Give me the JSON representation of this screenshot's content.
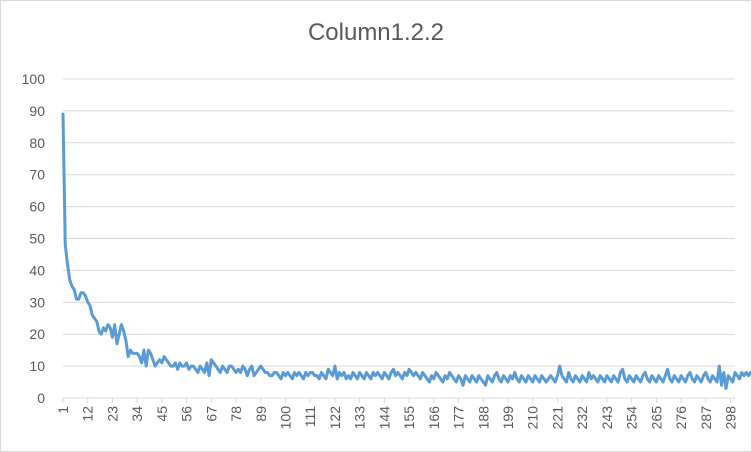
{
  "chart_data": {
    "type": "line",
    "title": "Column1.2.2",
    "xlabel": "",
    "ylabel": "",
    "ylim": [
      0,
      100
    ],
    "yticks": [
      0,
      10,
      20,
      30,
      40,
      50,
      60,
      70,
      80,
      90,
      100
    ],
    "xlim": [
      1,
      300
    ],
    "xticks": [
      1,
      12,
      23,
      34,
      45,
      56,
      67,
      78,
      89,
      100,
      111,
      122,
      133,
      144,
      155,
      166,
      177,
      188,
      199,
      210,
      221,
      232,
      243,
      254,
      265,
      276,
      287,
      298
    ],
    "grid": "horizontal",
    "legend": "none",
    "line_color": "#5b9bd5",
    "series": [
      {
        "x_start": 1,
        "values": [
          89,
          48,
          42,
          37,
          35,
          34,
          31,
          31,
          33,
          33,
          32,
          30,
          29,
          26,
          25,
          24,
          21,
          20,
          22,
          21,
          23,
          22,
          19,
          23,
          17,
          20,
          23,
          21,
          18,
          13,
          15,
          14,
          14,
          14,
          13,
          11,
          15,
          10,
          15,
          14,
          12,
          10,
          11,
          12,
          11,
          13,
          12,
          11,
          10,
          10,
          11,
          9,
          11,
          10,
          10,
          11,
          9,
          10,
          10,
          9,
          8,
          10,
          9,
          8,
          11,
          7,
          12,
          11,
          10,
          9,
          8,
          10,
          9,
          8,
          10,
          10,
          9,
          8,
          9,
          8,
          10,
          9,
          7,
          9,
          10,
          7,
          8,
          9,
          10,
          9,
          8,
          8,
          7,
          7,
          8,
          8,
          7,
          6,
          8,
          7,
          8,
          7,
          6,
          8,
          7,
          8,
          7,
          6,
          8,
          7,
          8,
          8,
          7,
          7,
          6,
          8,
          7,
          6,
          9,
          8,
          7,
          10,
          6,
          8,
          7,
          8,
          6,
          7,
          6,
          8,
          7,
          6,
          8,
          7,
          6,
          8,
          7,
          6,
          8,
          7,
          8,
          7,
          6,
          8,
          7,
          6,
          8,
          9,
          7,
          8,
          7,
          6,
          8,
          7,
          9,
          8,
          7,
          8,
          7,
          6,
          8,
          7,
          6,
          5,
          7,
          6,
          8,
          7,
          6,
          5,
          7,
          6,
          8,
          7,
          6,
          5,
          7,
          6,
          4,
          7,
          6,
          5,
          7,
          6,
          5,
          7,
          6,
          5,
          4,
          7,
          6,
          5,
          7,
          8,
          6,
          5,
          7,
          6,
          5,
          7,
          6,
          8,
          6,
          5,
          7,
          6,
          5,
          7,
          6,
          5,
          7,
          6,
          5,
          7,
          6,
          5,
          6,
          7,
          6,
          5,
          7,
          10,
          7,
          6,
          5,
          8,
          6,
          5,
          7,
          6,
          5,
          7,
          6,
          5,
          8,
          6,
          7,
          6,
          5,
          7,
          6,
          5,
          7,
          6,
          5,
          7,
          6,
          5,
          8,
          9,
          6,
          5,
          7,
          6,
          5,
          7,
          6,
          5,
          7,
          8,
          6,
          5,
          7,
          6,
          5,
          7,
          6,
          5,
          7,
          9,
          6,
          5,
          7,
          6,
          5,
          7,
          6,
          5,
          7,
          8,
          6,
          5,
          7,
          6,
          5,
          7,
          8,
          6,
          5,
          7,
          6,
          5,
          10,
          4,
          8,
          3,
          7,
          6,
          5,
          8,
          7,
          6,
          8,
          7,
          8,
          7,
          8
        ]
      }
    ]
  }
}
